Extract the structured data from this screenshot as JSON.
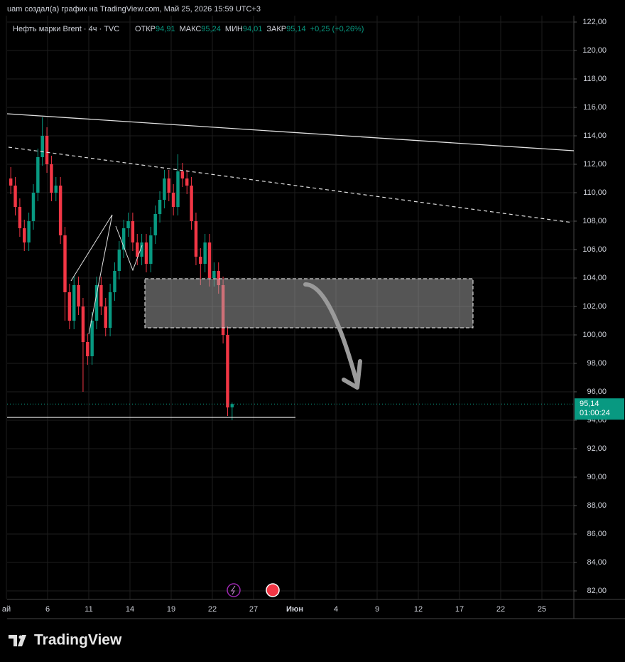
{
  "header": "uam создал(а) график на TradingView.com, Май 25, 2026 15:59 UTC+3",
  "brand": "TradingView",
  "chart_data": {
    "type": "candlestick",
    "symbol": "Нефть марки Brent · 4ч · TVC",
    "legend": [
      {
        "name": "ОТКР",
        "text": "94,91"
      },
      {
        "name": "МАКС",
        "text": "95,24"
      },
      {
        "name": "МИН",
        "text": "94,01"
      },
      {
        "name": "ЗАКР",
        "text": "95,14"
      }
    ],
    "change": "+0,25 (+0,26%)",
    "x_labels": [
      "ай",
      "6",
      "11",
      "14",
      "19",
      "22",
      "27",
      "Июн",
      "4",
      "9",
      "12",
      "17",
      "22",
      "25"
    ],
    "open": [
      111,
      110.5,
      109,
      107.5,
      106.5,
      108,
      110,
      112.5,
      114,
      112,
      110,
      110.5,
      107,
      103,
      101,
      103.5,
      102,
      99.5,
      98.5,
      101,
      103.5,
      102,
      100.5,
      103,
      104.5,
      106,
      107.5,
      108,
      106.5,
      105.5,
      106.5,
      105,
      107,
      108.5,
      109.5,
      111,
      110,
      109,
      111.5,
      111,
      110.5,
      108,
      105.5,
      105,
      106.5,
      104,
      104.5,
      103.5,
      100,
      94.91
    ],
    "high": [
      111.8,
      111.1,
      109.6,
      108.1,
      108.6,
      110.6,
      113.1,
      115.3,
      114.6,
      112.6,
      111.1,
      111.1,
      107.6,
      103.6,
      104.1,
      104.1,
      102.6,
      100.1,
      101.6,
      104.1,
      104.1,
      102.6,
      103.6,
      105.1,
      106.6,
      108.1,
      108.6,
      108.6,
      107.1,
      107.1,
      107.1,
      107.6,
      109.1,
      110.1,
      111.6,
      111.6,
      110.6,
      112.7,
      112.1,
      111.6,
      111.1,
      108.6,
      106.1,
      107.1,
      107.1,
      105.1,
      105.1,
      104.1,
      100.6,
      95.24
    ],
    "low": [
      109.9,
      108.4,
      106.9,
      105.9,
      105.9,
      107.4,
      109.4,
      111.9,
      111.4,
      109.4,
      109.4,
      106.4,
      101,
      100.4,
      100.4,
      101.4,
      96,
      97.9,
      97.9,
      100.4,
      101.4,
      99.9,
      99.9,
      102.4,
      103.9,
      105.4,
      106.9,
      105.9,
      104.9,
      104.9,
      104.4,
      104.4,
      106.4,
      107.9,
      108.9,
      109.4,
      108.4,
      108.4,
      110.4,
      109.9,
      107.4,
      104.9,
      103.5,
      104.4,
      103.4,
      103.4,
      102.9,
      99.4,
      94.3,
      94.01
    ],
    "close": [
      110.5,
      109,
      107.5,
      106.5,
      108,
      110,
      112.5,
      114,
      112,
      110,
      110.5,
      107,
      103,
      101,
      103.5,
      102,
      99.5,
      98.5,
      101,
      103.5,
      102,
      100.5,
      103,
      104.5,
      106,
      107.5,
      108,
      106.5,
      105.5,
      106.5,
      105,
      107,
      108.5,
      109.5,
      111,
      110,
      109,
      111.5,
      111,
      110.5,
      108,
      105.5,
      105,
      106.5,
      104,
      104.5,
      103.5,
      100,
      94.9,
      95.14
    ],
    "up_color": "#089981",
    "down_color": "#f23645",
    "last_price": {
      "value": 95.14,
      "label": "95,14"
    },
    "countdown": "01:00:24",
    "ylim": [
      82,
      122
    ],
    "yticks": [
      {
        "value": 82,
        "label": "82,00"
      },
      {
        "value": 84,
        "label": "84,00"
      },
      {
        "value": 86,
        "label": "86,00"
      },
      {
        "value": 88,
        "label": "88,00"
      },
      {
        "value": 90,
        "label": "90,00"
      },
      {
        "value": 92,
        "label": "92,00"
      },
      {
        "value": 94,
        "label": "94,00"
      },
      {
        "value": 96,
        "label": "96,00"
      },
      {
        "value": 98,
        "label": "98,00"
      },
      {
        "value": 100,
        "label": "100,00"
      },
      {
        "value": 102,
        "label": "102,00"
      },
      {
        "value": 104,
        "label": "104,00"
      },
      {
        "value": 106,
        "label": "106,00"
      },
      {
        "value": 108,
        "label": "108,00"
      },
      {
        "value": 110,
        "label": "110,00"
      },
      {
        "value": 112,
        "label": "112,00"
      },
      {
        "value": 114,
        "label": "114,00"
      },
      {
        "value": 116,
        "label": "116,00"
      },
      {
        "value": 118,
        "label": "118,00"
      },
      {
        "value": 120,
        "label": "120,00"
      },
      {
        "value": 122,
        "label": "122,00"
      }
    ],
    "grid": true
  }
}
